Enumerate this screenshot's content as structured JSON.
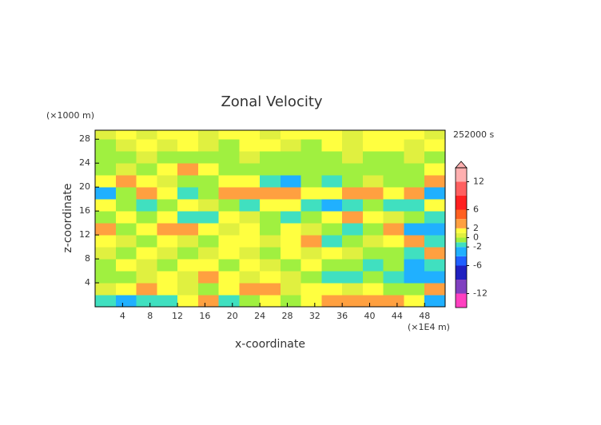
{
  "chart_data": {
    "type": "heatmap",
    "title": "Zonal Velocity",
    "y_unit_label": "(×1000 m)",
    "time_label": "252000 s",
    "x_unit_label": "(×1E4 m)",
    "xlabel": "x-coordinate",
    "ylabel": "z-coordinate",
    "xlim": [
      0,
      51
    ],
    "ylim": [
      0,
      29.5
    ],
    "xticks": [
      4,
      8,
      12,
      16,
      20,
      24,
      28,
      32,
      36,
      40,
      44,
      48
    ],
    "yticks": [
      4,
      8,
      12,
      16,
      20,
      24,
      28
    ],
    "x": [
      1.5,
      4.5,
      7.5,
      10.5,
      13.5,
      16.5,
      19.5,
      22.5,
      25.5,
      28.5,
      31.5,
      34.5,
      37.5,
      40.5,
      43.5,
      46.5,
      49.5
    ],
    "z": [
      1,
      3,
      5,
      7,
      9,
      11,
      13,
      15,
      17,
      19,
      21,
      23,
      25,
      27,
      29
    ],
    "values": [
      [
        -2,
        -2.5,
        -1.5,
        -2,
        1,
        2,
        -1.5,
        -1,
        1,
        -0.5,
        1.5,
        2,
        2.5,
        2,
        2.5,
        1.5,
        -3
      ],
      [
        0.5,
        1,
        2,
        1,
        0.5,
        -0.5,
        1.5,
        2.5,
        2,
        0.5,
        1,
        1,
        0.5,
        1,
        -0.5,
        -1,
        2
      ],
      [
        -1,
        -0.5,
        0.5,
        1,
        0.5,
        2,
        1,
        0.5,
        1,
        0.5,
        -0.5,
        -1.5,
        -2,
        -1,
        -1.5,
        -2.5,
        -3
      ],
      [
        -0.5,
        1,
        0.5,
        -0.5,
        1.5,
        1,
        -0.5,
        1,
        0.5,
        -1,
        1,
        -0.5,
        -1,
        -2,
        -1,
        -3,
        -2
      ],
      [
        0.5,
        -0.5,
        1,
        0.5,
        -0.5,
        0.5,
        1,
        0.5,
        -0.5,
        1.5,
        0.5,
        1,
        0.5,
        -0.5,
        -0.5,
        -2,
        3
      ],
      [
        1,
        0.5,
        -0.5,
        1,
        0.5,
        -0.5,
        1,
        1,
        0.5,
        1.5,
        2,
        -1.5,
        -1,
        0.5,
        1,
        2,
        -2
      ],
      [
        2.5,
        -0.5,
        1,
        3,
        2.5,
        1,
        0.5,
        1,
        -0.5,
        1,
        0.5,
        -1,
        -1.5,
        -1,
        2,
        -2.5,
        -3
      ],
      [
        -1,
        1.5,
        -0.5,
        1,
        -1.5,
        -2,
        1,
        0.5,
        -0.5,
        -1.5,
        -0.5,
        1.5,
        2.5,
        1,
        0.5,
        -0.5,
        -1.5
      ],
      [
        1.5,
        -0.5,
        -1.5,
        -1,
        1,
        0.5,
        -0.5,
        -1.5,
        1,
        1,
        -1.5,
        -2.5,
        -1.5,
        -1,
        -1.5,
        -2,
        1
      ],
      [
        -2.5,
        -1,
        2,
        1,
        -1.5,
        -1,
        2.5,
        2,
        3,
        3.5,
        1.5,
        1,
        2,
        2.5,
        1,
        2,
        -2.5
      ],
      [
        1,
        2.5,
        1,
        0.5,
        -0.5,
        -0.5,
        1,
        1.5,
        -1.5,
        -2.5,
        -1,
        -1.5,
        -1,
        0.5,
        -1,
        -0.5,
        2.5
      ],
      [
        -0.5,
        0.5,
        -0.5,
        1.5,
        2.5,
        1,
        -0.5,
        -0.5,
        -0.5,
        -0.5,
        -0.5,
        -0.5,
        -0.5,
        -0.5,
        -0.5,
        -0.5,
        1.5
      ],
      [
        -0.5,
        -0.5,
        0.5,
        -0.5,
        -0.5,
        -0.5,
        -0.5,
        0.5,
        -0.5,
        -0.5,
        -0.5,
        -0.5,
        0.5,
        -0.5,
        -0.5,
        0.5,
        -0.5
      ],
      [
        -0.5,
        0.5,
        1,
        0.5,
        1,
        0.5,
        -0.5,
        1,
        1,
        0.5,
        -0.5,
        1,
        0.5,
        1,
        1,
        0.5,
        1
      ],
      [
        0.5,
        1,
        0.5,
        1,
        1,
        0.5,
        1,
        1,
        0.5,
        1,
        1,
        1,
        0.5,
        1,
        1,
        1,
        0.5
      ]
    ],
    "colorbar": {
      "levels": [
        -15,
        -12,
        -9,
        -6,
        -4,
        -2,
        -1,
        0,
        1,
        2,
        4,
        6,
        9,
        12,
        15
      ],
      "colors": [
        "#ff40c0",
        "#8040c0",
        "#2020c0",
        "#2060ff",
        "#20b0ff",
        "#40e0c0",
        "#a0f040",
        "#e0f040",
        "#ffff40",
        "#ffa040",
        "#ff6020",
        "#ff2020",
        "#ff6060",
        "#ffb0b0"
      ],
      "ticks": [
        12,
        6,
        2,
        0,
        -2,
        -6,
        -12
      ]
    }
  }
}
